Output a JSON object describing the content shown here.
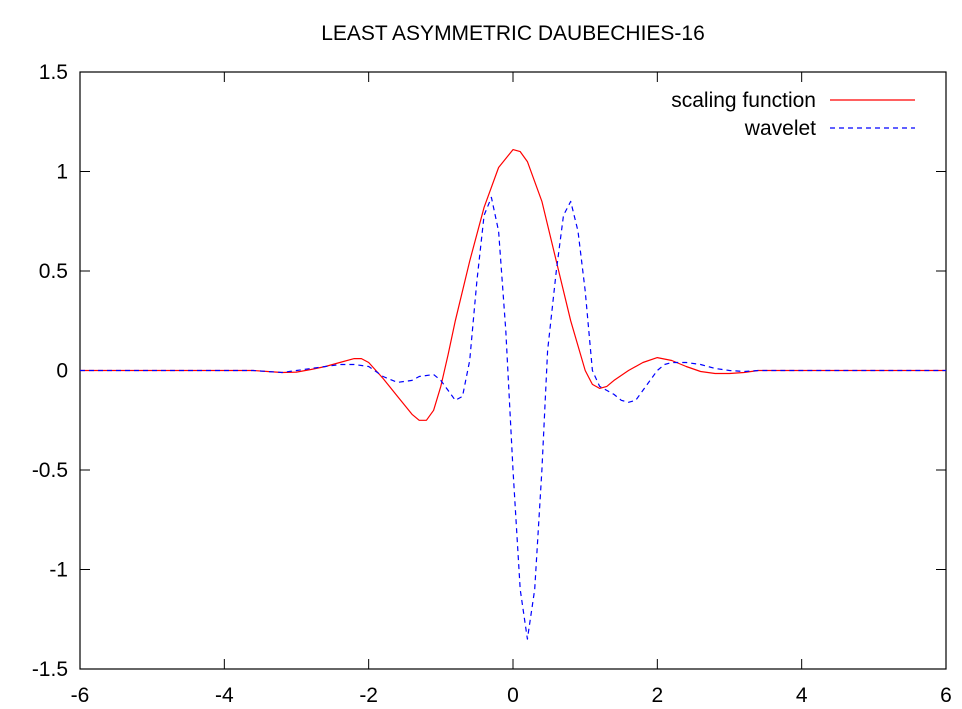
{
  "chart_data": {
    "type": "line",
    "title": "LEAST ASYMMETRIC DAUBECHIES-16",
    "xlabel": "",
    "ylabel": "",
    "xlim": [
      -6,
      6
    ],
    "ylim": [
      -1.5,
      1.5
    ],
    "xticks": [
      "-6",
      "-4",
      "-2",
      "0",
      "2",
      "4",
      "6"
    ],
    "yticks": [
      "1.5",
      "1",
      "0.5",
      "0",
      "-0.5",
      "-1",
      "-1.5"
    ],
    "grid": false,
    "legend_position": "top-right",
    "series": [
      {
        "name": "scaling function",
        "color": "#ff0000",
        "dash": "solid",
        "x": [
          -6,
          -3.6,
          -3.4,
          -3.2,
          -3.0,
          -2.8,
          -2.6,
          -2.4,
          -2.2,
          -2.1,
          -2.0,
          -1.8,
          -1.6,
          -1.4,
          -1.3,
          -1.2,
          -1.1,
          -1.0,
          -0.9,
          -0.8,
          -0.6,
          -0.4,
          -0.2,
          0.0,
          0.1,
          0.2,
          0.4,
          0.6,
          0.8,
          1.0,
          1.1,
          1.2,
          1.3,
          1.4,
          1.6,
          1.8,
          2.0,
          2.2,
          2.4,
          2.6,
          2.8,
          3.0,
          3.2,
          3.4,
          3.6,
          4.0,
          6
        ],
        "y": [
          0,
          0,
          -0.005,
          -0.01,
          -0.008,
          0.005,
          0.02,
          0.04,
          0.06,
          0.06,
          0.04,
          -0.04,
          -0.13,
          -0.22,
          -0.25,
          -0.25,
          -0.2,
          -0.08,
          0.08,
          0.25,
          0.55,
          0.82,
          1.02,
          1.11,
          1.1,
          1.05,
          0.85,
          0.55,
          0.25,
          0.0,
          -0.07,
          -0.09,
          -0.08,
          -0.05,
          0.0,
          0.04,
          0.065,
          0.05,
          0.02,
          -0.005,
          -0.015,
          -0.015,
          -0.01,
          0.0,
          0.0,
          0.0,
          0
        ]
      },
      {
        "name": "wavelet",
        "color": "#0000ff",
        "dash": "dashed",
        "x": [
          -6,
          -3.6,
          -3.2,
          -3.0,
          -2.8,
          -2.6,
          -2.4,
          -2.2,
          -2.0,
          -1.8,
          -1.6,
          -1.4,
          -1.3,
          -1.1,
          -1.0,
          -0.9,
          -0.8,
          -0.7,
          -0.6,
          -0.5,
          -0.4,
          -0.3,
          -0.2,
          -0.1,
          0.0,
          0.1,
          0.2,
          0.3,
          0.4,
          0.48,
          0.6,
          0.7,
          0.8,
          0.9,
          1.0,
          1.05,
          1.1,
          1.2,
          1.3,
          1.4,
          1.5,
          1.6,
          1.7,
          1.8,
          1.9,
          2.0,
          2.1,
          2.2,
          2.4,
          2.6,
          2.8,
          3.0,
          3.2,
          3.4,
          3.6,
          4.0,
          6
        ],
        "y": [
          0,
          0,
          -0.01,
          0.0,
          0.01,
          0.02,
          0.03,
          0.03,
          0.02,
          -0.03,
          -0.06,
          -0.05,
          -0.03,
          -0.02,
          -0.05,
          -0.1,
          -0.15,
          -0.13,
          0.05,
          0.45,
          0.78,
          0.87,
          0.7,
          0.2,
          -0.5,
          -1.1,
          -1.35,
          -1.1,
          -0.5,
          0.1,
          0.5,
          0.78,
          0.85,
          0.7,
          0.4,
          0.2,
          0.0,
          -0.08,
          -0.1,
          -0.12,
          -0.15,
          -0.16,
          -0.15,
          -0.1,
          -0.05,
          0.0,
          0.03,
          0.04,
          0.04,
          0.03,
          0.01,
          0.0,
          -0.005,
          0.0,
          0.0,
          0.0,
          0
        ]
      }
    ]
  }
}
